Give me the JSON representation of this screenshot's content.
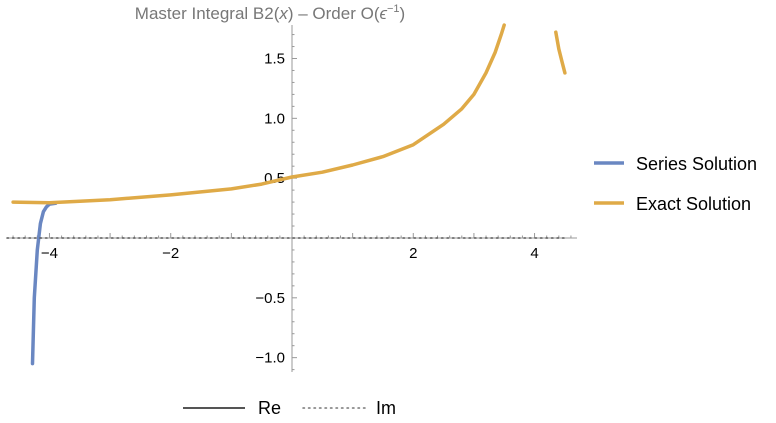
{
  "chart_data": {
    "type": "line",
    "title": {
      "prefix": "Master Integral B2(",
      "var": "x",
      "middle": ") – Order O(",
      "eps": "ϵ",
      "exponent": "−1",
      "suffix": ")"
    },
    "xlabel": "",
    "ylabel": "",
    "xlim": [
      -4.7,
      4.7
    ],
    "ylim": [
      -1.12,
      1.78
    ],
    "x_ticks": [
      {
        "value": -4,
        "label": "−4"
      },
      {
        "value": -2,
        "label": "−2"
      },
      {
        "value": 2,
        "label": "2"
      },
      {
        "value": 4,
        "label": "4"
      }
    ],
    "y_ticks": [
      {
        "value": 1.5,
        "label": "1.5"
      },
      {
        "value": 1.0,
        "label": "1.0"
      },
      {
        "value": 0.5,
        "label": "0.5"
      },
      {
        "value": -0.5,
        "label": "−0.5"
      },
      {
        "value": -1.0,
        "label": "−1.0"
      }
    ],
    "series": [
      {
        "name": "Series Solution",
        "color": "#6a87c2",
        "points": [
          [
            -4.28,
            -1.05
          ],
          [
            -4.25,
            -0.5
          ],
          [
            -4.2,
            -0.1
          ],
          [
            -4.15,
            0.12
          ],
          [
            -4.1,
            0.22
          ],
          [
            -4.05,
            0.26
          ],
          [
            -4.0,
            0.282
          ],
          [
            -3.9,
            0.29
          ]
        ]
      },
      {
        "name": "Exact Solution",
        "color": "#dfaa47",
        "segments": [
          [
            [
              -4.6,
              0.3
            ],
            [
              -4.0,
              0.295
            ],
            [
              -3.0,
              0.32
            ],
            [
              -2.0,
              0.36
            ],
            [
              -1.0,
              0.41
            ],
            [
              -0.5,
              0.45
            ],
            [
              0.0,
              0.51
            ],
            [
              0.5,
              0.55
            ],
            [
              1.0,
              0.61
            ],
            [
              1.5,
              0.68
            ],
            [
              2.0,
              0.78
            ],
            [
              2.5,
              0.95
            ],
            [
              2.8,
              1.08
            ],
            [
              3.0,
              1.2
            ],
            [
              3.2,
              1.38
            ],
            [
              3.35,
              1.55
            ],
            [
              3.45,
              1.7
            ],
            [
              3.5,
              1.78
            ]
          ],
          [
            [
              4.35,
              1.72
            ],
            [
              4.4,
              1.58
            ],
            [
              4.45,
              1.48
            ],
            [
              4.5,
              1.38
            ]
          ]
        ]
      },
      {
        "name": "Im",
        "color": "#555555",
        "style": "dotted",
        "points": [
          [
            -4.7,
            0.0
          ],
          [
            4.5,
            0.0
          ]
        ]
      }
    ],
    "legend": {
      "placement": "right",
      "items": [
        "Series Solution",
        "Exact Solution"
      ]
    },
    "style_legend": {
      "placement": "bottom",
      "items": [
        {
          "label": "Re",
          "style": "solid",
          "color": "#555555"
        },
        {
          "label": "Im",
          "style": "dotted",
          "color": "#555555"
        }
      ]
    },
    "grid": false
  }
}
